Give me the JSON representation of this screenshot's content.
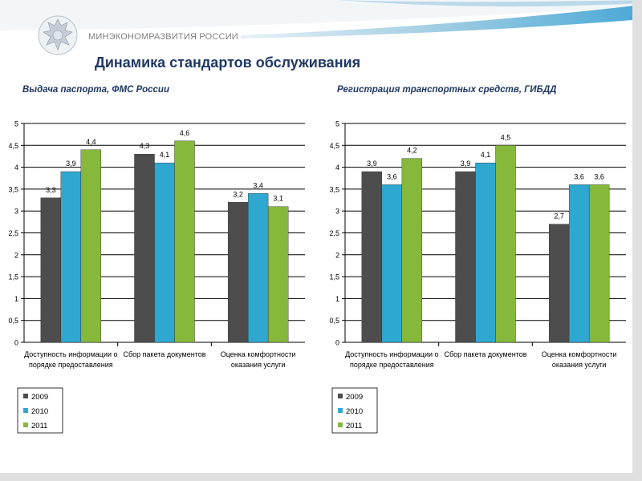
{
  "ministry_label": "МИНЭКОНОМРАЗВИТИЯ РОССИИ",
  "slide_title": "Динамика стандартов обслуживания",
  "colors": {
    "2009": "#4d4d4d",
    "2010": "#2ea8d0",
    "2011": "#86b83b",
    "title": "#1f3864",
    "grid": "#000000"
  },
  "chart_data": [
    {
      "type": "bar",
      "title": "Выдача паспорта, ФМС России",
      "categories": [
        [
          "Доступность информации о",
          "порядке предоставления"
        ],
        [
          "Сбор пакета документов"
        ],
        [
          "Оценка комфортности",
          "оказания услуги"
        ]
      ],
      "series": [
        {
          "name": "2009",
          "values": [
            3.3,
            4.3,
            3.2
          ]
        },
        {
          "name": "2010",
          "values": [
            3.9,
            4.1,
            3.4
          ]
        },
        {
          "name": "2011",
          "values": [
            4.4,
            4.6,
            3.1
          ]
        }
      ],
      "value_labels": [
        [
          "3,3",
          "4,3",
          "3,2"
        ],
        [
          "3,9",
          "4,1",
          "3,4"
        ],
        [
          "4,4",
          "4,6",
          "3,1"
        ]
      ],
      "ylim": [
        0,
        5
      ],
      "yticks": [
        "0",
        "0,5",
        "1",
        "1,5",
        "2",
        "2,5",
        "3",
        "3,5",
        "4",
        "4,5",
        "5"
      ],
      "grid": true,
      "legend_position": "bottom-left"
    },
    {
      "type": "bar",
      "title": "Регистрация транспортных средств, ГИБДД",
      "categories": [
        [
          "Доступность информации о",
          "порядке предоставления"
        ],
        [
          "Сбор пакета документов"
        ],
        [
          "Оценка комфортности",
          "оказания услуги"
        ]
      ],
      "series": [
        {
          "name": "2009",
          "values": [
            3.9,
            3.9,
            2.7
          ]
        },
        {
          "name": "2010",
          "values": [
            3.6,
            4.1,
            3.6
          ]
        },
        {
          "name": "2011",
          "values": [
            4.2,
            4.5,
            3.6
          ]
        }
      ],
      "value_labels": [
        [
          "3,9",
          "3,9",
          "2,7"
        ],
        [
          "3,6",
          "4,1",
          "3,6"
        ],
        [
          "4,2",
          "4,5",
          "3,6"
        ]
      ],
      "ylim": [
        0,
        5
      ],
      "yticks": [
        "0",
        "0,5",
        "1",
        "1,5",
        "2",
        "2,5",
        "3",
        "3,5",
        "4",
        "4,5",
        "5"
      ],
      "grid": true,
      "legend_position": "bottom-left"
    }
  ]
}
